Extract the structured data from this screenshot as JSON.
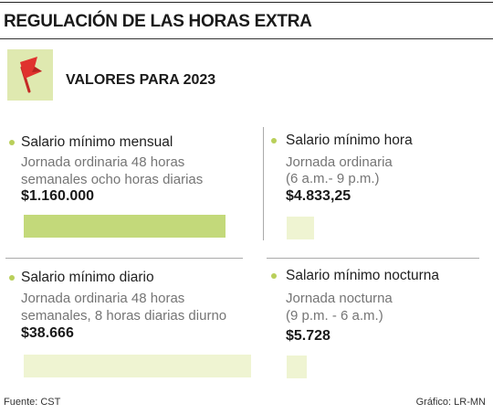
{
  "title": "REGULACIÓN DE LAS HORAS EXTRA",
  "subtitle": "VALORES PARA 2023",
  "icon": "red-flag-icon",
  "colors": {
    "bar_dark": "#c3d97a",
    "bar_light": "#eff4d2",
    "bullet": "#b9cf5a",
    "icon_bg": "#dfe9b0",
    "flag": "#e0322e"
  },
  "chart_data": {
    "type": "bar",
    "orientation": "horizontal",
    "categories": [
      "Salario mínimo mensual",
      "Salario mínimo hora",
      "Salario mínimo diario",
      "Salario mínimo nocturna"
    ],
    "values": [
      1160000,
      4833.25,
      38666,
      5728
    ],
    "value_labels": [
      "$1.160.000",
      "$4.833,25",
      "$38.666",
      "$5.728"
    ],
    "descriptions": [
      [
        "Jornada ordinaria 48 horas",
        "semanales ocho horas diarias"
      ],
      [
        "Jornada ordinaria",
        "(6 a.m.- 9 p.m.)"
      ],
      [
        "Jornada ordinaria 48 horas",
        "semanales, 8 horas diarias diurno"
      ],
      [
        "Jornada nocturna",
        "(9 p.m. - 6 a.m.)"
      ]
    ]
  },
  "footer": {
    "source": "Fuente: CST",
    "credit": "Gráfico: LR-MN"
  }
}
